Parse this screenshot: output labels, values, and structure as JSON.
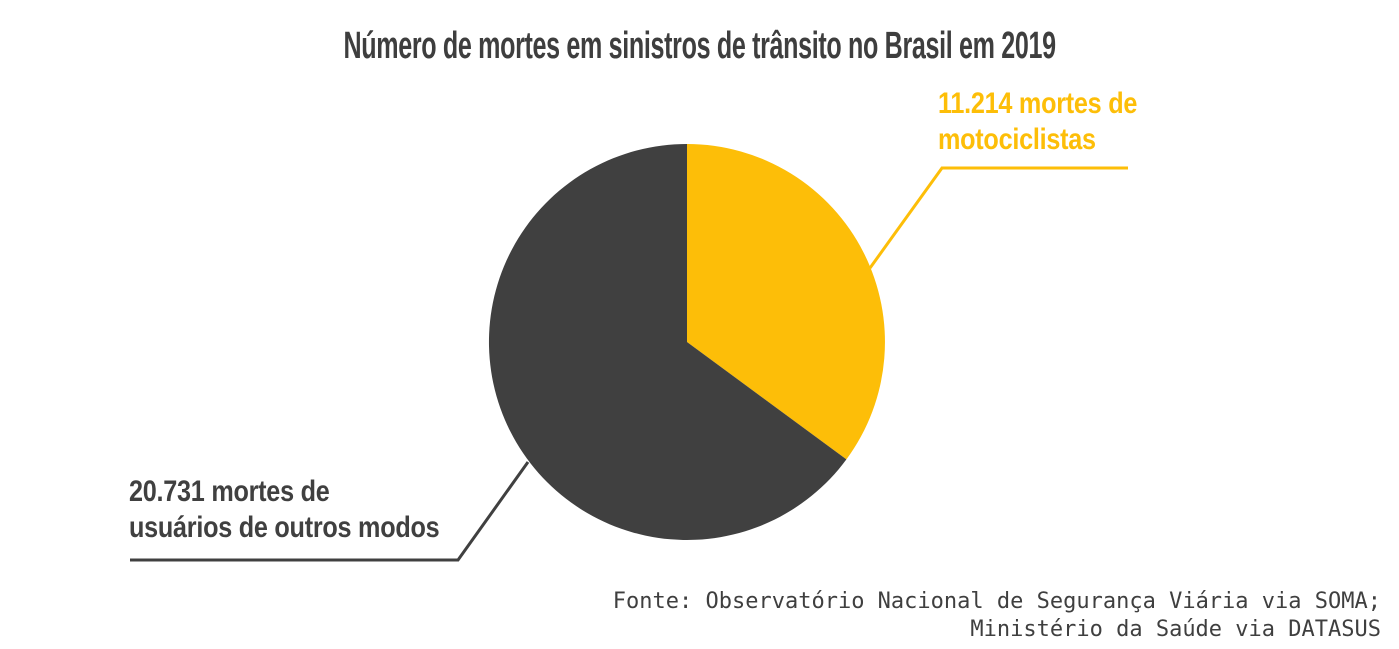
{
  "title": "Número de mortes em sinistros de trânsito no Brasil em 2019",
  "labels": {
    "motorcyclists": {
      "line1": "11.214 mortes de",
      "line2": "motociclistas"
    },
    "others": {
      "line1": "20.731 mortes de",
      "line2": "usuários de outros modos"
    }
  },
  "source": {
    "line1": "Fonte: Observatório Nacional de Segurança Viária via SOMA;",
    "line2": "Ministério da Saúde via DATASUS"
  },
  "colors": {
    "motorcyclists": "#FDBE08",
    "others": "#404040",
    "title": "#3E3E3E",
    "source": "#3F3F3F",
    "background": "#FFFFFF"
  },
  "chart_data": {
    "type": "pie",
    "title": "Número de mortes em sinistros de trânsito no Brasil em 2019",
    "slices": [
      {
        "id": "motorcyclists",
        "label": "11.214 mortes de motociclistas",
        "value": 11214,
        "color": "#FDBE08"
      },
      {
        "id": "others",
        "label": "20.731 mortes de usuários de outros modos",
        "value": 20731,
        "color": "#404040"
      }
    ],
    "start_angle_deg": 0,
    "direction": "clockwise",
    "legend_position": "callout-labels",
    "source": "Fonte: Observatório Nacional de Segurança Viária via SOMA; Ministério da Saúde via DATASUS"
  }
}
